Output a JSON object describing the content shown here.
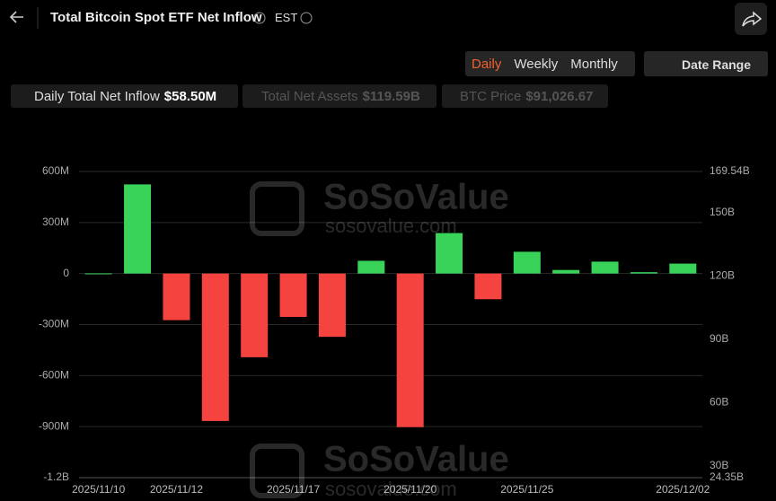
{
  "header": {
    "title": "Total Bitcoin Spot ETF Net Inflow",
    "timezone": "EST"
  },
  "controls": {
    "periods": [
      "Daily",
      "Weekly",
      "Monthly"
    ],
    "date_range": "Date Range"
  },
  "legend": [
    {
      "label": "Daily Total Net Inflow",
      "value": "$58.50M"
    },
    {
      "label": "Total Net Assets",
      "value": "$119.59B"
    },
    {
      "label": "BTC Price",
      "value": "$91,026.67"
    }
  ],
  "watermark": {
    "brand": "SoSoValue",
    "site": "sosovalue.com"
  },
  "chart_data": {
    "type": "bar",
    "categories": [
      "2025/11/10",
      null,
      "2025/11/12",
      null,
      null,
      "2025/11/17",
      null,
      null,
      "2025/11/20",
      null,
      null,
      "2025/11/25",
      null,
      null,
      null,
      "2025/12/02"
    ],
    "values": [
      1,
      524,
      -274,
      -867,
      -492,
      -255,
      -372,
      75,
      -903,
      238,
      -151,
      128,
      21,
      70,
      8,
      58.5
    ],
    "positive_color": "#39d35a",
    "negative_color": "#f5433f",
    "ylim": [
      -1200,
      600
    ],
    "yticks": [
      {
        "value": 600,
        "label": "600M"
      },
      {
        "value": 300,
        "label": "300M"
      },
      0,
      {
        "value": -300,
        "label": "-300M"
      },
      {
        "value": -600,
        "label": "-600M"
      },
      {
        "value": -900,
        "label": "-900M"
      },
      {
        "value": -1200,
        "label": "-1.2B"
      }
    ],
    "y2lim": [
      24.35,
      169.54
    ],
    "y2ticks": [
      {
        "value": 169.54,
        "label": "169.54B"
      },
      {
        "value": 150,
        "label": "150B"
      },
      {
        "value": 120,
        "label": "120B"
      },
      {
        "value": 90,
        "label": "90B"
      },
      {
        "value": 60,
        "label": "60B"
      },
      {
        "value": 30,
        "label": "30B"
      },
      {
        "value": 24.35,
        "label": "24.35B"
      }
    ],
    "grid": true
  }
}
